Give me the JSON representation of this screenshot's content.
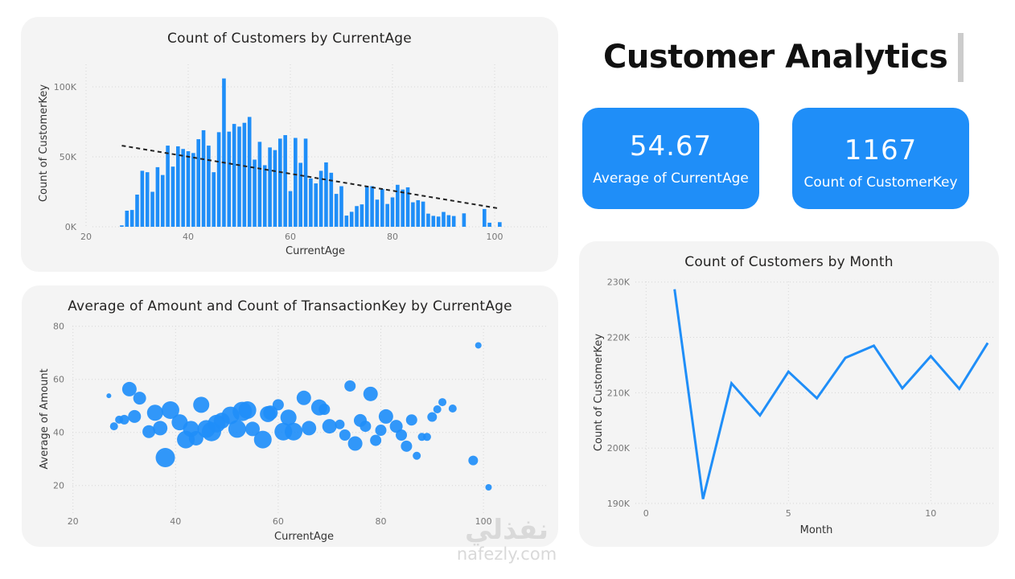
{
  "header": {
    "title": "Customer Analytics"
  },
  "kpis": [
    {
      "value": "54.67",
      "label": "Average of CurrentAge"
    },
    {
      "value": "1167",
      "label": "Count of CustomerKey"
    }
  ],
  "colors": {
    "accent": "#1f8ef8",
    "panel": "#f4f4f4",
    "trend": "#222222"
  },
  "watermark": {
    "arabic": "نفذلي",
    "latin": "nafezly.com"
  },
  "chart_data": [
    {
      "id": "age-histogram",
      "type": "bar",
      "title": "Count of Customers by CurrentAge",
      "xlabel": "CurrentAge",
      "ylabel": "Count of CustomerKey",
      "xlim": [
        20,
        102
      ],
      "ylim": [
        0,
        105000
      ],
      "xticks": [
        20,
        40,
        60,
        80,
        100
      ],
      "yticks": [
        0,
        50000,
        100000
      ],
      "ytick_labels": [
        "0K",
        "50K",
        "100K"
      ],
      "grid": true,
      "trendline": {
        "style": "dashed",
        "from": [
          27,
          58000
        ],
        "to": [
          101,
          13000
        ]
      },
      "x": [
        27,
        28,
        29,
        30,
        31,
        32,
        33,
        34,
        35,
        36,
        37,
        38,
        39,
        40,
        41,
        42,
        43,
        44,
        45,
        46,
        47,
        48,
        49,
        50,
        51,
        52,
        53,
        54,
        55,
        56,
        57,
        58,
        59,
        60,
        61,
        62,
        63,
        64,
        65,
        66,
        67,
        68,
        69,
        70,
        71,
        72,
        73,
        74,
        75,
        76,
        77,
        78,
        79,
        80,
        81,
        82,
        83,
        84,
        85,
        86,
        87,
        88,
        89,
        90,
        91,
        92,
        94,
        98,
        99,
        101
      ],
      "values": [
        1000,
        11500,
        12000,
        23000,
        40000,
        39000,
        25000,
        42600,
        37000,
        58000,
        43000,
        57500,
        55600,
        54000,
        52700,
        62600,
        69000,
        58000,
        39000,
        67600,
        106000,
        68000,
        73500,
        71600,
        74300,
        78500,
        48000,
        60700,
        44000,
        56700,
        54800,
        63000,
        65500,
        25500,
        63500,
        45700,
        63000,
        34500,
        31000,
        40000,
        46000,
        38600,
        23500,
        29000,
        8000,
        10700,
        14800,
        16000,
        28700,
        29000,
        19400,
        27000,
        16300,
        21000,
        30000,
        26600,
        28200,
        17500,
        19000,
        18000,
        9400,
        7800,
        7300,
        10600,
        8300,
        7700,
        9600,
        12700,
        2900,
        3300
      ]
    },
    {
      "id": "amount-scatter",
      "type": "scatter",
      "title": "Average of Amount and Count of TransactionKey by CurrentAge",
      "xlabel": "CurrentAge",
      "ylabel": "Average of Amount",
      "size_measure": "Count of TransactionKey",
      "xlim": [
        20,
        104
      ],
      "ylim": [
        12,
        80
      ],
      "xticks": [
        20,
        40,
        60,
        80,
        100
      ],
      "yticks": [
        20,
        40,
        60,
        80
      ],
      "grid": true,
      "points": [
        {
          "x": 27,
          "y": 53.8,
          "size": 3
        },
        {
          "x": 28,
          "y": 42.3,
          "size": 5
        },
        {
          "x": 29,
          "y": 44.8,
          "size": 5
        },
        {
          "x": 30,
          "y": 44.8,
          "size": 6
        },
        {
          "x": 31,
          "y": 56.3,
          "size": 9
        },
        {
          "x": 32,
          "y": 46.0,
          "size": 8
        },
        {
          "x": 33,
          "y": 52.9,
          "size": 8
        },
        {
          "x": 34.8,
          "y": 40.3,
          "size": 8
        },
        {
          "x": 36,
          "y": 47.4,
          "size": 10
        },
        {
          "x": 37,
          "y": 41.6,
          "size": 9
        },
        {
          "x": 38,
          "y": 30.5,
          "size": 12
        },
        {
          "x": 39,
          "y": 48.4,
          "size": 11
        },
        {
          "x": 40.8,
          "y": 43.8,
          "size": 10
        },
        {
          "x": 42,
          "y": 37.3,
          "size": 11
        },
        {
          "x": 43,
          "y": 41.3,
          "size": 10
        },
        {
          "x": 44,
          "y": 37.8,
          "size": 9
        },
        {
          "x": 45,
          "y": 50.4,
          "size": 10
        },
        {
          "x": 46,
          "y": 41.3,
          "size": 11
        },
        {
          "x": 47,
          "y": 40.3,
          "size": 12
        },
        {
          "x": 48,
          "y": 43.3,
          "size": 11
        },
        {
          "x": 49,
          "y": 44.4,
          "size": 10
        },
        {
          "x": 50.7,
          "y": 46.4,
          "size": 11
        },
        {
          "x": 52,
          "y": 41.3,
          "size": 11
        },
        {
          "x": 53,
          "y": 47.9,
          "size": 12
        },
        {
          "x": 54,
          "y": 48.4,
          "size": 11
        },
        {
          "x": 55,
          "y": 41.3,
          "size": 9
        },
        {
          "x": 57,
          "y": 37.3,
          "size": 11
        },
        {
          "x": 58,
          "y": 46.9,
          "size": 10
        },
        {
          "x": 58.5,
          "y": 47.4,
          "size": 9
        },
        {
          "x": 60,
          "y": 50.4,
          "size": 7
        },
        {
          "x": 61,
          "y": 40.3,
          "size": 11
        },
        {
          "x": 62,
          "y": 45.6,
          "size": 10
        },
        {
          "x": 63,
          "y": 40.3,
          "size": 11
        },
        {
          "x": 65,
          "y": 53.0,
          "size": 9
        },
        {
          "x": 66,
          "y": 41.6,
          "size": 9
        },
        {
          "x": 68,
          "y": 49.4,
          "size": 10
        },
        {
          "x": 69,
          "y": 48.7,
          "size": 7
        },
        {
          "x": 70,
          "y": 42.3,
          "size": 9
        },
        {
          "x": 72,
          "y": 43.0,
          "size": 6
        },
        {
          "x": 73,
          "y": 39.0,
          "size": 7
        },
        {
          "x": 74,
          "y": 57.5,
          "size": 7
        },
        {
          "x": 75,
          "y": 35.8,
          "size": 9
        },
        {
          "x": 76,
          "y": 44.5,
          "size": 8
        },
        {
          "x": 77,
          "y": 42.3,
          "size": 7
        },
        {
          "x": 78,
          "y": 54.5,
          "size": 9
        },
        {
          "x": 79,
          "y": 37.0,
          "size": 7
        },
        {
          "x": 80,
          "y": 40.8,
          "size": 7
        },
        {
          "x": 81,
          "y": 46.0,
          "size": 9
        },
        {
          "x": 83,
          "y": 42.3,
          "size": 8
        },
        {
          "x": 84,
          "y": 39.0,
          "size": 7
        },
        {
          "x": 85,
          "y": 34.8,
          "size": 7
        },
        {
          "x": 86,
          "y": 44.7,
          "size": 7
        },
        {
          "x": 87,
          "y": 31.2,
          "size": 5
        },
        {
          "x": 88,
          "y": 38.3,
          "size": 5
        },
        {
          "x": 89,
          "y": 38.3,
          "size": 5
        },
        {
          "x": 90,
          "y": 45.8,
          "size": 6
        },
        {
          "x": 91,
          "y": 48.7,
          "size": 5
        },
        {
          "x": 92,
          "y": 51.4,
          "size": 5
        },
        {
          "x": 94,
          "y": 49.0,
          "size": 5
        },
        {
          "x": 98,
          "y": 29.4,
          "size": 6
        },
        {
          "x": 99,
          "y": 72.8,
          "size": 4
        },
        {
          "x": 101,
          "y": 19.3,
          "size": 4
        }
      ]
    },
    {
      "id": "month-line",
      "type": "line",
      "title": "Count of Customers by Month",
      "xlabel": "Month",
      "ylabel": "Count of CustomerKey",
      "xlim": [
        0,
        12.3
      ],
      "ylim": [
        190000,
        230000
      ],
      "xticks": [
        0,
        5,
        10
      ],
      "yticks": [
        190000,
        200000,
        210000,
        220000,
        230000
      ],
      "ytick_labels": [
        "190K",
        "200K",
        "210K",
        "220K",
        "230K"
      ],
      "grid": true,
      "x": [
        1,
        2,
        3,
        4,
        5,
        6,
        7,
        8,
        9,
        10,
        11,
        12
      ],
      "values": [
        228700,
        190800,
        211700,
        205900,
        213800,
        209000,
        216300,
        218500,
        210800,
        216600,
        210700,
        219000
      ]
    }
  ]
}
